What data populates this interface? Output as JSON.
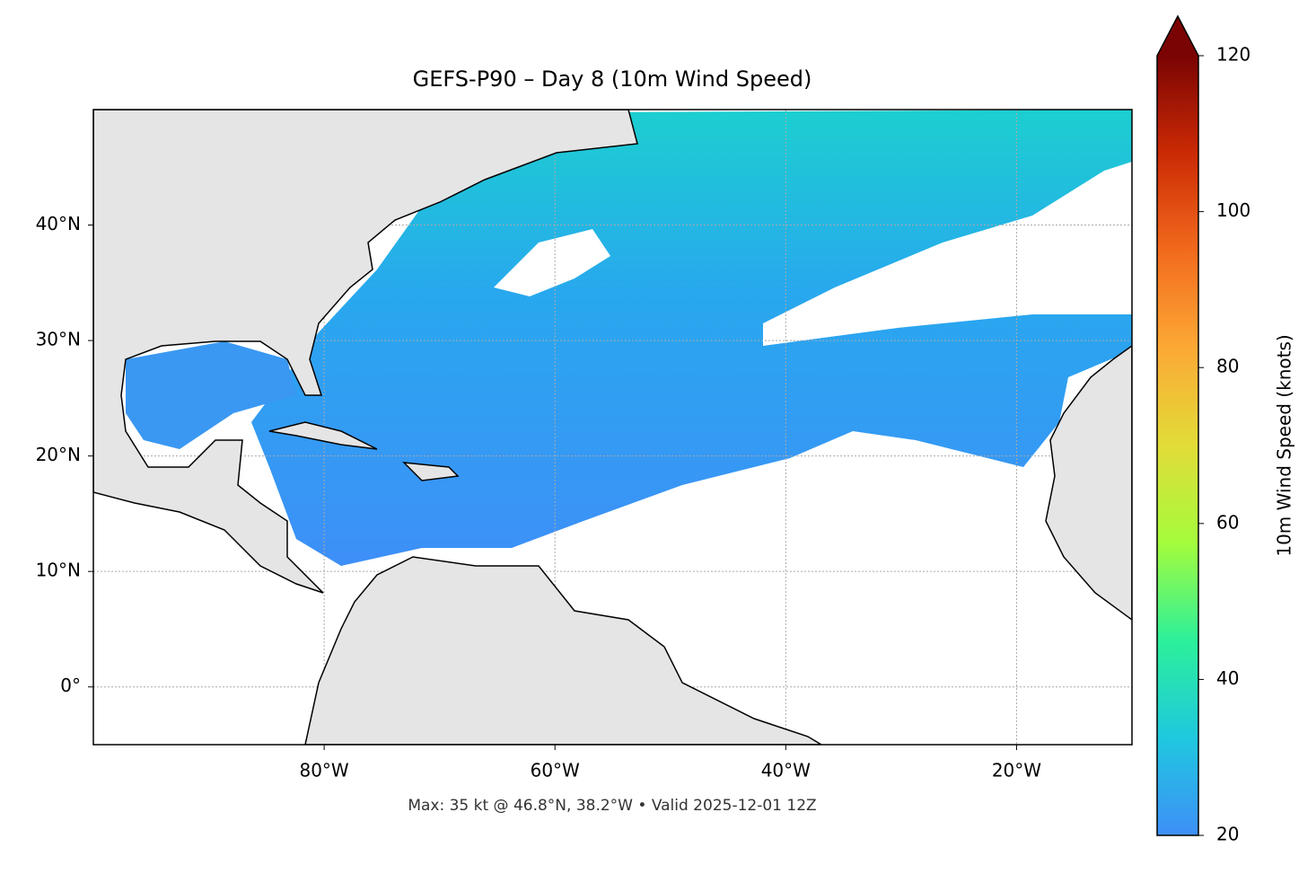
{
  "map": {
    "title": "GEFS-P90 – Day 8 (10m Wind Speed)",
    "footer": "Max: 35 kt @ 46.8°N, 38.2°W • Valid 2025-12-01 12Z",
    "xlim": [
      -100,
      -10
    ],
    "ylim": [
      -5,
      50
    ],
    "xticks": [
      {
        "value": -80,
        "label": "80°W"
      },
      {
        "value": -60,
        "label": "60°W"
      },
      {
        "value": -40,
        "label": "40°W"
      },
      {
        "value": -20,
        "label": "20°W"
      }
    ],
    "yticks": [
      {
        "value": 0,
        "label": "0°"
      },
      {
        "value": 10,
        "label": "10°N"
      },
      {
        "value": 20,
        "label": "20°N"
      },
      {
        "value": 30,
        "label": "30°N"
      },
      {
        "value": 40,
        "label": "40°N"
      }
    ],
    "grid": true,
    "colorbar": {
      "label": "10m Wind Speed (knots)",
      "lim": [
        20,
        120
      ],
      "ticks": [
        20,
        40,
        60,
        80,
        100,
        120
      ],
      "colors": [
        "#3e8ff8",
        "#1fc8de",
        "#2cf09a",
        "#a4fc3c",
        "#e2dc38",
        "#fca935",
        "#f26a1d",
        "#cb2a04",
        "#7a0403"
      ]
    }
  }
}
